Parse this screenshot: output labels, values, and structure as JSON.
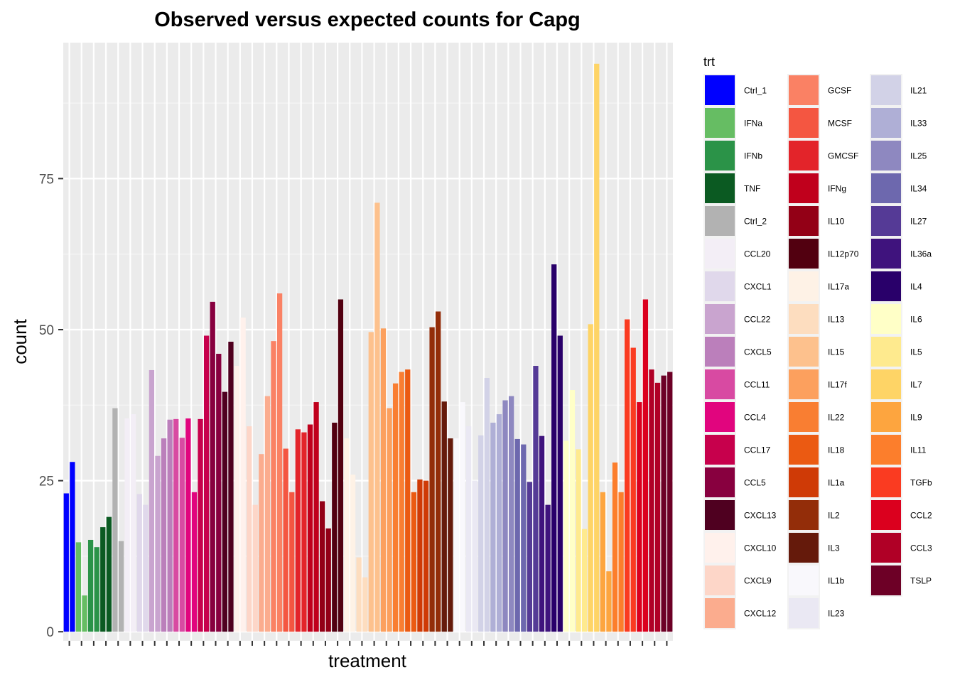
{
  "chart_data": {
    "type": "bar",
    "title": "Observed versus expected counts for Capg",
    "xlabel": "treatment",
    "ylabel": "count",
    "ylim": [
      -1.5,
      97.5
    ],
    "yticks": [
      0,
      25,
      50,
      75
    ],
    "grid": true,
    "legend_title": "trt",
    "legend_position": "right",
    "groups": [
      {
        "trt": "Ctrl_1",
        "color": "#0000FF"
      },
      {
        "trt": "IFNa",
        "color": "#66BD63"
      },
      {
        "trt": "IFNb",
        "color": "#2B9348"
      },
      {
        "trt": "TNF",
        "color": "#0B5A22"
      },
      {
        "trt": "Ctrl_2",
        "color": "#B2B2B2"
      },
      {
        "trt": "CCL20",
        "color": "#F3EEF6"
      },
      {
        "trt": "CXCL1",
        "color": "#E0D8EB"
      },
      {
        "trt": "CCL22",
        "color": "#C9A4CF"
      },
      {
        "trt": "CXCL5",
        "color": "#BB7FBB"
      },
      {
        "trt": "CCL11",
        "color": "#D84AA2"
      },
      {
        "trt": "CCL4",
        "color": "#E1057E"
      },
      {
        "trt": "CCL17",
        "color": "#C7004C"
      },
      {
        "trt": "CCL5",
        "color": "#88003F"
      },
      {
        "trt": "CXCL13",
        "color": "#4F0020"
      },
      {
        "trt": "CXCL10",
        "color": "#FFF1EC"
      },
      {
        "trt": "CXCL9",
        "color": "#FDD6C8"
      },
      {
        "trt": "CXCL12",
        "color": "#FBAC8E"
      },
      {
        "trt": "GCSF",
        "color": "#FA8164"
      },
      {
        "trt": "MCSF",
        "color": "#F45641"
      },
      {
        "trt": "GMCSF",
        "color": "#E3242A"
      },
      {
        "trt": "IFNg",
        "color": "#C0001C"
      },
      {
        "trt": "IL10",
        "color": "#930016"
      },
      {
        "trt": "IL12p70",
        "color": "#520010"
      },
      {
        "trt": "IL17a",
        "color": "#FEF2E6"
      },
      {
        "trt": "IL13",
        "color": "#FDDDBF"
      },
      {
        "trt": "IL15",
        "color": "#FDC18D"
      },
      {
        "trt": "IL17f",
        "color": "#FCA05E"
      },
      {
        "trt": "IL22",
        "color": "#F97E32"
      },
      {
        "trt": "IL18",
        "color": "#EB5A12"
      },
      {
        "trt": "IL1a",
        "color": "#CF3A06"
      },
      {
        "trt": "IL2",
        "color": "#932D09"
      },
      {
        "trt": "IL3",
        "color": "#651A0B"
      },
      {
        "trt": "IL1b",
        "color": "#F9F8FC"
      },
      {
        "trt": "IL23",
        "color": "#EAE8F3"
      },
      {
        "trt": "IL21",
        "color": "#D2D2E7"
      },
      {
        "trt": "IL33",
        "color": "#AFAFD6"
      },
      {
        "trt": "IL25",
        "color": "#8E88C0"
      },
      {
        "trt": "IL34",
        "color": "#6D68AE"
      },
      {
        "trt": "IL27",
        "color": "#553A96"
      },
      {
        "trt": "IL36a",
        "color": "#3F137D"
      },
      {
        "trt": "IL4",
        "color": "#29006A"
      },
      {
        "trt": "IL6",
        "color": "#FFFFC7"
      },
      {
        "trt": "IL5",
        "color": "#FEEA8E"
      },
      {
        "trt": "IL7",
        "color": "#FED466"
      },
      {
        "trt": "IL9",
        "color": "#FDA53F"
      },
      {
        "trt": "IL11",
        "color": "#FC7E2C"
      },
      {
        "trt": "TGFb",
        "color": "#FA3B21"
      },
      {
        "trt": "CCL2",
        "color": "#DB001E"
      },
      {
        "trt": "CCL3",
        "color": "#B00026"
      },
      {
        "trt": "TSLP",
        "color": "#6D0026"
      }
    ],
    "bars": [
      {
        "trt": "Ctrl_1",
        "y": 22.9
      },
      {
        "trt": "Ctrl_1",
        "y": 28.1
      },
      {
        "trt": "IFNa",
        "y": 14.8
      },
      {
        "trt": "IFNa",
        "y": 6.0
      },
      {
        "trt": "IFNb",
        "y": 15.2
      },
      {
        "trt": "IFNb",
        "y": 14.0
      },
      {
        "trt": "TNF",
        "y": 17.3
      },
      {
        "trt": "TNF",
        "y": 19.0
      },
      {
        "trt": "Ctrl_2",
        "y": 37.0
      },
      {
        "trt": "Ctrl_2",
        "y": 15.0
      },
      {
        "trt": "CCL20",
        "y": 35.3
      },
      {
        "trt": "CCL20",
        "y": 36.0
      },
      {
        "trt": "CXCL1",
        "y": 22.8
      },
      {
        "trt": "CXCL1",
        "y": 21.0
      },
      {
        "trt": "CCL22",
        "y": 43.3
      },
      {
        "trt": "CCL22",
        "y": 29.1
      },
      {
        "trt": "CXCL5",
        "y": 32.0
      },
      {
        "trt": "CXCL5",
        "y": 35.1
      },
      {
        "trt": "CCL11",
        "y": 35.2
      },
      {
        "trt": "CCL11",
        "y": 32.1
      },
      {
        "trt": "CCL4",
        "y": 35.3
      },
      {
        "trt": "CCL4",
        "y": 23.1
      },
      {
        "trt": "CCL17",
        "y": 35.2
      },
      {
        "trt": "CCL17",
        "y": 49.0
      },
      {
        "trt": "CCL5",
        "y": 54.6
      },
      {
        "trt": "CCL5",
        "y": 46.0
      },
      {
        "trt": "CXCL13",
        "y": 39.7
      },
      {
        "trt": "CXCL13",
        "y": 48.0
      },
      {
        "trt": "CXCL10",
        "y": 44.0
      },
      {
        "trt": "CXCL10",
        "y": 52.0
      },
      {
        "trt": "CXCL9",
        "y": 34.0
      },
      {
        "trt": "CXCL9",
        "y": 21.0
      },
      {
        "trt": "CXCL12",
        "y": 29.4
      },
      {
        "trt": "CXCL12",
        "y": 39.0
      },
      {
        "trt": "GCSF",
        "y": 48.1
      },
      {
        "trt": "GCSF",
        "y": 56.0
      },
      {
        "trt": "MCSF",
        "y": 30.3
      },
      {
        "trt": "MCSF",
        "y": 23.1
      },
      {
        "trt": "GMCSF",
        "y": 33.5
      },
      {
        "trt": "GMCSF",
        "y": 33.0
      },
      {
        "trt": "IFNg",
        "y": 34.3
      },
      {
        "trt": "IFNg",
        "y": 38.0
      },
      {
        "trt": "IL10",
        "y": 21.6
      },
      {
        "trt": "IL10",
        "y": 17.1
      },
      {
        "trt": "IL12p70",
        "y": 34.6
      },
      {
        "trt": "IL12p70",
        "y": 55.0
      },
      {
        "trt": "IL17a",
        "y": 32.0
      },
      {
        "trt": "IL17a",
        "y": 26.0
      },
      {
        "trt": "IL13",
        "y": 12.3
      },
      {
        "trt": "IL13",
        "y": 9.0
      },
      {
        "trt": "IL15",
        "y": 49.6
      },
      {
        "trt": "IL15",
        "y": 71.0
      },
      {
        "trt": "IL17f",
        "y": 50.2
      },
      {
        "trt": "IL17f",
        "y": 37.0
      },
      {
        "trt": "IL22",
        "y": 41.1
      },
      {
        "trt": "IL22",
        "y": 43.0
      },
      {
        "trt": "IL18",
        "y": 43.4
      },
      {
        "trt": "IL18",
        "y": 23.1
      },
      {
        "trt": "IL1a",
        "y": 25.2
      },
      {
        "trt": "IL1a",
        "y": 25.0
      },
      {
        "trt": "IL2",
        "y": 50.4
      },
      {
        "trt": "IL2",
        "y": 53.0
      },
      {
        "trt": "IL3",
        "y": 38.1
      },
      {
        "trt": "IL3",
        "y": 32.0
      },
      {
        "trt": "IL1b",
        "y": 32.0
      },
      {
        "trt": "IL1b",
        "y": 38.0
      },
      {
        "trt": "IL23",
        "y": 34.0
      },
      {
        "trt": "IL23",
        "y": 25.0
      },
      {
        "trt": "IL21",
        "y": 32.5
      },
      {
        "trt": "IL21",
        "y": 42.0
      },
      {
        "trt": "IL33",
        "y": 34.6
      },
      {
        "trt": "IL33",
        "y": 36.0
      },
      {
        "trt": "IL25",
        "y": 38.3
      },
      {
        "trt": "IL25",
        "y": 39.0
      },
      {
        "trt": "IL34",
        "y": 31.9
      },
      {
        "trt": "IL34",
        "y": 31.0
      },
      {
        "trt": "IL27",
        "y": 24.8
      },
      {
        "trt": "IL27",
        "y": 44.0
      },
      {
        "trt": "IL36a",
        "y": 32.4
      },
      {
        "trt": "IL36a",
        "y": 21.0
      },
      {
        "trt": "IL4",
        "y": 60.8
      },
      {
        "trt": "IL4",
        "y": 49.0
      },
      {
        "trt": "IL6",
        "y": 31.6
      },
      {
        "trt": "IL6",
        "y": 40.0
      },
      {
        "trt": "IL5",
        "y": 30.2
      },
      {
        "trt": "IL5",
        "y": 17.0
      },
      {
        "trt": "IL7",
        "y": 50.9
      },
      {
        "trt": "IL7",
        "y": 94.0
      },
      {
        "trt": "IL9",
        "y": 23.1
      },
      {
        "trt": "IL9",
        "y": 10.0
      },
      {
        "trt": "IL11",
        "y": 28.0
      },
      {
        "trt": "IL11",
        "y": 23.1
      },
      {
        "trt": "TGFb",
        "y": 51.7
      },
      {
        "trt": "TGFb",
        "y": 47.0
      },
      {
        "trt": "CCL2",
        "y": 38.0
      },
      {
        "trt": "CCL2",
        "y": 55.0
      },
      {
        "trt": "CCL3",
        "y": 43.4
      },
      {
        "trt": "CCL3",
        "y": 41.2
      },
      {
        "trt": "TSLP",
        "y": 42.4
      },
      {
        "trt": "TSLP",
        "y": 43.0
      }
    ]
  }
}
